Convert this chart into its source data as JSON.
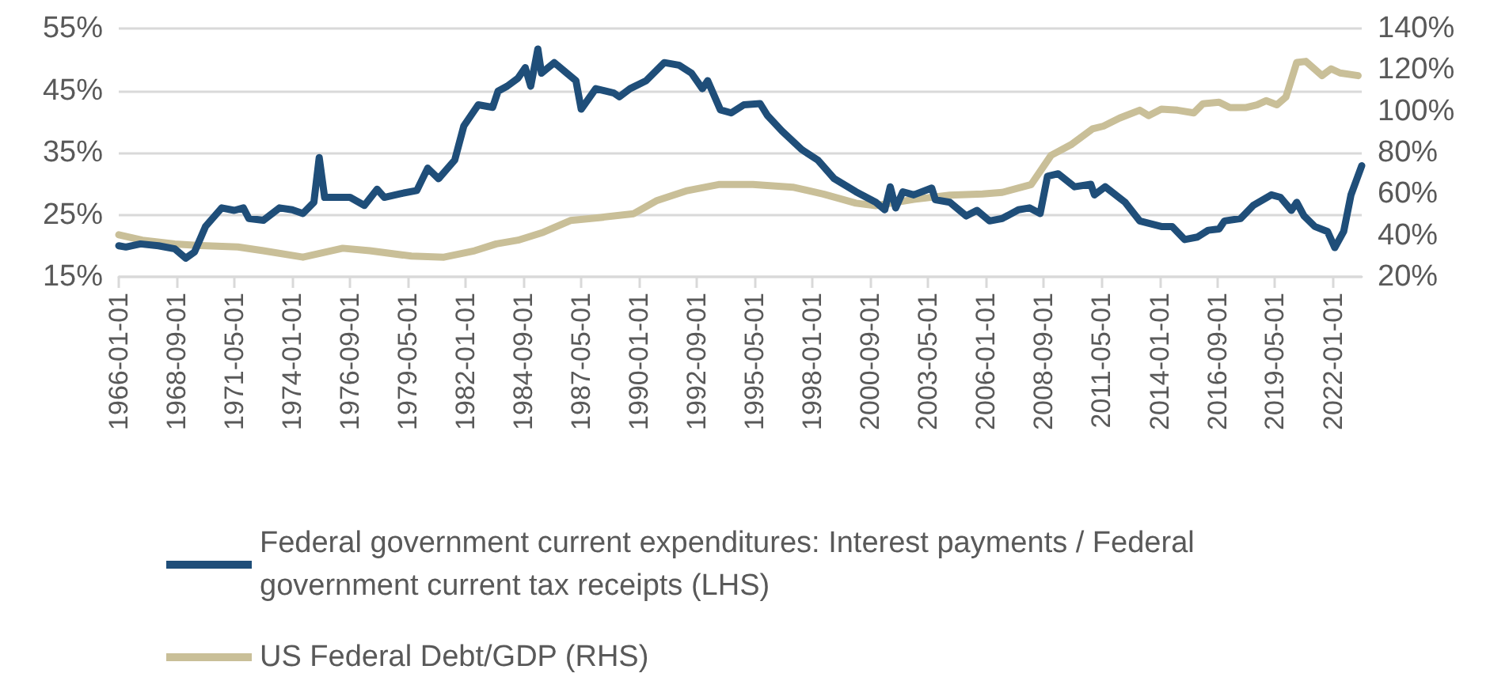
{
  "chart_data": {
    "type": "line",
    "xlim": [
      "1966-01-01",
      "2023-05-01"
    ],
    "xticks": [
      "1966-01-01",
      "1968-09-01",
      "1971-05-01",
      "1974-01-01",
      "1976-09-01",
      "1979-05-01",
      "1982-01-01",
      "1984-09-01",
      "1987-05-01",
      "1990-01-01",
      "1992-09-01",
      "1995-05-01",
      "1998-01-01",
      "2000-09-01",
      "2003-05-01",
      "2006-01-01",
      "2008-09-01",
      "2011-05-01",
      "2014-01-01",
      "2016-09-01",
      "2019-05-01",
      "2022-01-01"
    ],
    "ylim": [
      15,
      55
    ],
    "yticks": [
      {
        "value": 15,
        "label": "15%"
      },
      {
        "value": 25,
        "label": "25%"
      },
      {
        "value": 35,
        "label": "35%"
      },
      {
        "value": 45,
        "label": "45%"
      },
      {
        "value": 55,
        "label": "55%"
      }
    ],
    "y2lim": [
      20,
      140
    ],
    "y2ticks": [
      {
        "value": 20,
        "label": "20%"
      },
      {
        "value": 40,
        "label": "40%"
      },
      {
        "value": 60,
        "label": "60%"
      },
      {
        "value": 80,
        "label": "80%"
      },
      {
        "value": 100,
        "label": "100%"
      },
      {
        "value": 120,
        "label": "120%"
      },
      {
        "value": 140,
        "label": "140%"
      }
    ],
    "grid": "y",
    "legend": "bottom",
    "marker": "none",
    "line_style": "solid",
    "series": [
      {
        "name": "Federal government current expenditures: Interest payments / Federal government current tax receipts (LHS)",
        "color": "#1f4e79",
        "x": [
          "1966-01",
          "1966-05",
          "1967-01",
          "1967-11",
          "1968-08",
          "1969-02",
          "1969-07",
          "1970-01",
          "1970-10",
          "1971-05",
          "1971-10",
          "1972-01",
          "1972-09",
          "1973-06",
          "1974-01",
          "1974-07",
          "1975-01",
          "1975-04",
          "1975-07",
          "1976-02",
          "1976-09",
          "1977-05",
          "1977-12",
          "1978-04",
          "1979-01",
          "1979-10",
          "1980-04",
          "1980-10",
          "1981-07",
          "1981-12",
          "1982-08",
          "1983-04",
          "1983-07",
          "1983-12",
          "1984-06",
          "1984-10",
          "1985-01",
          "1985-05",
          "1985-07",
          "1986-02",
          "1986-09",
          "1987-02",
          "1987-05",
          "1988-01",
          "1988-11",
          "1989-02",
          "1989-08",
          "1990-05",
          "1991-03",
          "1991-11",
          "1992-06",
          "1992-12",
          "1993-03",
          "1993-10",
          "1994-04",
          "1994-11",
          "1995-08",
          "1995-12",
          "1996-08",
          "1997-07",
          "1998-04",
          "1999-01",
          "2000-01",
          "2000-12",
          "2001-05",
          "2001-08",
          "2001-11",
          "2002-03",
          "2002-09",
          "2003-07",
          "2003-09",
          "2004-05",
          "2005-02",
          "2005-08",
          "2006-03",
          "2006-10",
          "2007-07",
          "2008-01",
          "2008-07",
          "2008-11",
          "2009-05",
          "2010-02",
          "2010-11",
          "2011-01",
          "2011-07",
          "2012-06",
          "2013-02",
          "2014-02",
          "2014-08",
          "2015-03",
          "2015-10",
          "2016-04",
          "2016-10",
          "2017-01",
          "2017-10",
          "2018-05",
          "2019-03",
          "2019-08",
          "2020-02",
          "2020-05",
          "2020-09",
          "2021-03",
          "2021-10",
          "2022-02",
          "2022-07",
          "2022-11",
          "2023-05"
        ],
        "values": [
          20.0,
          19.8,
          20.3,
          20.0,
          19.5,
          18.0,
          19.0,
          23.1,
          26.1,
          25.7,
          26.1,
          24.4,
          24.1,
          26.1,
          25.8,
          25.2,
          27.0,
          34.2,
          27.8,
          27.8,
          27.8,
          26.5,
          29.1,
          27.8,
          28.4,
          28.9,
          32.5,
          30.8,
          33.8,
          39.3,
          42.7,
          42.3,
          44.9,
          45.7,
          47.0,
          48.7,
          45.7,
          51.7,
          47.8,
          49.5,
          47.8,
          46.6,
          42.0,
          45.3,
          44.6,
          44.0,
          45.3,
          46.6,
          49.5,
          49.1,
          47.8,
          45.3,
          46.6,
          41.9,
          41.4,
          42.7,
          42.9,
          41.0,
          38.5,
          35.5,
          33.8,
          30.8,
          28.7,
          27.0,
          25.8,
          29.5,
          26.1,
          28.7,
          28.2,
          29.3,
          27.4,
          27.0,
          24.8,
          25.7,
          24.0,
          24.4,
          25.8,
          26.1,
          25.2,
          31.2,
          31.6,
          29.5,
          29.9,
          28.2,
          29.5,
          27.0,
          24.0,
          23.1,
          23.1,
          21.0,
          21.4,
          22.5,
          22.7,
          24.0,
          24.4,
          26.5,
          28.2,
          27.8,
          25.7,
          27.0,
          24.8,
          23.1,
          22.3,
          19.7,
          22.3,
          28.2,
          32.9
        ]
      },
      {
        "name": "US Federal Debt/GDP (RHS)",
        "color": "#c9bf98",
        "axis": "y2",
        "x": [
          "1966-01",
          "1967-02",
          "1968-08",
          "1969-10",
          "1971-07",
          "1972-09",
          "1974-07",
          "1976-05",
          "1977-08",
          "1979-07",
          "1981-01",
          "1982-06",
          "1983-06",
          "1984-06",
          "1985-08",
          "1986-11",
          "1988-04",
          "1989-10",
          "1990-11",
          "1992-03",
          "1993-09",
          "1995-04",
          "1997-02",
          "1998-07",
          "2000-01",
          "2000-12",
          "2002-09",
          "2004-05",
          "2005-11",
          "2006-10",
          "2008-02",
          "2009-01",
          "2009-12",
          "2010-12",
          "2011-06",
          "2012-03",
          "2013-02",
          "2013-07",
          "2014-02",
          "2014-11",
          "2015-08",
          "2016-01",
          "2016-10",
          "2017-04",
          "2018-01",
          "2018-07",
          "2018-12",
          "2019-06",
          "2019-11",
          "2020-05",
          "2020-10",
          "2021-07",
          "2021-12",
          "2022-05",
          "2023-03"
        ],
        "values": [
          40.3,
          37.7,
          35.9,
          35.1,
          34.4,
          32.6,
          29.5,
          33.8,
          32.6,
          30.0,
          29.5,
          32.6,
          35.9,
          37.7,
          41.5,
          47.2,
          48.7,
          50.5,
          56.9,
          61.5,
          64.6,
          64.6,
          63.3,
          60.0,
          55.6,
          54.4,
          57.4,
          59.5,
          60.0,
          60.8,
          64.6,
          78.7,
          83.8,
          91.5,
          92.8,
          96.7,
          100.5,
          97.9,
          101.0,
          100.5,
          99.2,
          103.6,
          104.4,
          101.8,
          101.8,
          103.1,
          105.1,
          103.1,
          106.9,
          123.6,
          124.1,
          117.2,
          120.5,
          118.5,
          117.2
        ]
      }
    ]
  }
}
